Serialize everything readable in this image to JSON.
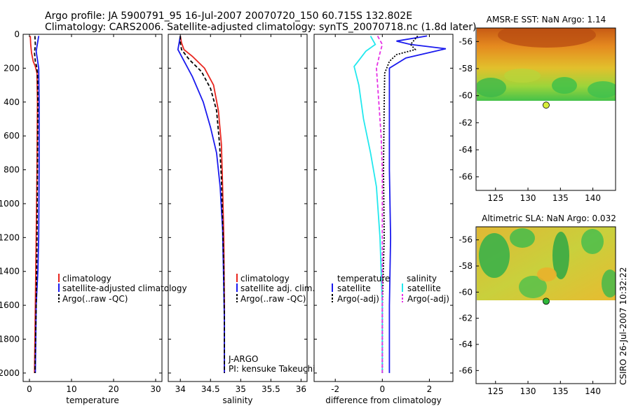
{
  "header": {
    "line1": "Argo profile: JA 5900791_95 16-Jul-2007 20070720_150 60.715S 132.802E",
    "line2": "Climatology: CARS2006. Satellite-adjusted climatology: synTS_20070718.nc (1.8d later)"
  },
  "side_stamp": "CSIRO 26-Jul-2007 10:32:22",
  "colors": {
    "climatology": "#e8251e",
    "satellite": "#1a1aee",
    "argo": "#000000",
    "temp_diff_sat": "#22e8ee",
    "sal_diff_sat": "#22e8ee",
    "argo_sal_adj": "#e632e6",
    "float_marker_sst": "#d8ee3a",
    "float_marker_sla": "#2fb83a"
  },
  "chart_data": [
    {
      "id": "temperature",
      "type": "line",
      "xlabel": "temperature",
      "ylabel": "",
      "xlim": [
        -1.5,
        31.5
      ],
      "ylim": [
        2050,
        0
      ],
      "xticks": [
        0,
        10,
        20,
        30
      ],
      "yticks": [
        0,
        200,
        400,
        600,
        800,
        1000,
        1200,
        1400,
        1600,
        1800,
        2000
      ],
      "legend_position": "lower-left",
      "legend": [
        "climatology",
        "satellite-adjusted climatology",
        "Argo(..raw -QC)"
      ],
      "series": [
        {
          "name": "climatology",
          "points": [
            [
              0.2,
              10
            ],
            [
              0.3,
              60
            ],
            [
              0.5,
              110
            ],
            [
              0.9,
              160
            ],
            [
              1.4,
              190
            ],
            [
              1.8,
              230
            ],
            [
              1.9,
              400
            ],
            [
              1.8,
              800
            ],
            [
              1.6,
              1200
            ],
            [
              1.4,
              1600
            ],
            [
              1.2,
              2000
            ]
          ]
        },
        {
          "name": "satellite-adjusted climatology",
          "points": [
            [
              2.2,
              10
            ],
            [
              2.0,
              40
            ],
            [
              1.8,
              70
            ],
            [
              1.6,
              100
            ],
            [
              1.9,
              150
            ],
            [
              2.2,
              200
            ],
            [
              2.3,
              400
            ],
            [
              2.3,
              800
            ],
            [
              2.2,
              1200
            ],
            [
              2.0,
              1400
            ],
            [
              1.6,
              1600
            ],
            [
              1.4,
              2000
            ]
          ]
        },
        {
          "name": "Argo(..raw -QC)",
          "points": [
            [
              1.3,
              10
            ],
            [
              1.4,
              60
            ],
            [
              1.2,
              110
            ],
            [
              1.4,
              160
            ],
            [
              1.7,
              190
            ],
            [
              1.9,
              230
            ],
            [
              2.0,
              400
            ],
            [
              1.9,
              800
            ],
            [
              1.8,
              1200
            ],
            [
              1.6,
              1600
            ],
            [
              1.3,
              2000
            ]
          ]
        }
      ]
    },
    {
      "id": "salinity",
      "type": "line",
      "xlabel": "salinity",
      "ylabel": "",
      "xlim": [
        33.8,
        36.1
      ],
      "ylim": [
        2050,
        0
      ],
      "xticks": [
        34,
        34.5,
        35,
        35.5,
        36
      ],
      "yticks": [
        0,
        200,
        400,
        600,
        800,
        1000,
        1200,
        1400,
        1600,
        1800,
        2000
      ],
      "legend_position": "lower-right",
      "legend": [
        "climatology",
        "satellite adj. clim.",
        "Argo(..raw -QC)"
      ],
      "annotations": [
        "J-ARGO",
        "PI: kensuke Takeuchi"
      ],
      "series": [
        {
          "name": "climatology",
          "points": [
            [
              34.0,
              10
            ],
            [
              34.02,
              50
            ],
            [
              34.06,
              90
            ],
            [
              34.2,
              130
            ],
            [
              34.4,
              200
            ],
            [
              34.55,
              300
            ],
            [
              34.63,
              450
            ],
            [
              34.68,
              650
            ],
            [
              34.7,
              900
            ],
            [
              34.72,
              1200
            ],
            [
              34.73,
              1600
            ],
            [
              34.73,
              2000
            ]
          ]
        },
        {
          "name": "satellite adj. clim.",
          "points": [
            [
              34.0,
              10
            ],
            [
              33.98,
              50
            ],
            [
              33.96,
              90
            ],
            [
              34.05,
              150
            ],
            [
              34.2,
              250
            ],
            [
              34.38,
              400
            ],
            [
              34.5,
              550
            ],
            [
              34.6,
              700
            ],
            [
              34.66,
              900
            ],
            [
              34.7,
              1150
            ],
            [
              34.72,
              1500
            ],
            [
              34.73,
              1700
            ],
            [
              34.73,
              2000
            ]
          ]
        },
        {
          "name": "Argo(..raw -QC)",
          "points": [
            [
              34.0,
              10
            ],
            [
              34.0,
              50
            ],
            [
              34.02,
              90
            ],
            [
              34.15,
              150
            ],
            [
              34.35,
              220
            ],
            [
              34.5,
              320
            ],
            [
              34.6,
              450
            ],
            [
              34.65,
              650
            ],
            [
              34.68,
              850
            ],
            [
              34.7,
              1100
            ],
            [
              34.72,
              1400
            ],
            [
              34.73,
              1700
            ],
            [
              34.73,
              2000
            ]
          ]
        }
      ]
    },
    {
      "id": "difference",
      "type": "line",
      "xlabel": "difference from climatology",
      "ylabel": "",
      "xlim": [
        -2.9,
        3.0
      ],
      "ylim": [
        2050,
        0
      ],
      "xticks": [
        -2,
        0,
        2
      ],
      "yticks": [
        0,
        200,
        400,
        600,
        800,
        1000,
        1200,
        1400,
        1600,
        1800,
        2000
      ],
      "legend_position": "lower-center",
      "legend_headers": [
        "temperature",
        "salinity"
      ],
      "legend": [
        "satellite",
        "Argo(-adj)",
        "satellite",
        "Argo(-adj)"
      ],
      "series": [
        {
          "name": "temperature satellite",
          "points": [
            [
              1.9,
              10
            ],
            [
              0.6,
              40
            ],
            [
              1.2,
              60
            ],
            [
              2.7,
              85
            ],
            [
              1.0,
              140
            ],
            [
              0.3,
              200
            ],
            [
              0.3,
              400
            ],
            [
              0.3,
              800
            ],
            [
              0.35,
              1200
            ],
            [
              0.3,
              1600
            ],
            [
              0.3,
              2000
            ]
          ]
        },
        {
          "name": "temperature Argo(-adj)",
          "points": [
            [
              1.5,
              10
            ],
            [
              1.2,
              60
            ],
            [
              1.4,
              90
            ],
            [
              0.6,
              120
            ],
            [
              0.3,
              160
            ],
            [
              0.1,
              230
            ],
            [
              0.08,
              400
            ],
            [
              0.05,
              800
            ],
            [
              0.08,
              1200
            ],
            [
              0.0,
              1600
            ],
            [
              0.0,
              2000
            ]
          ]
        },
        {
          "name": "salinity satellite",
          "points": [
            [
              -0.5,
              10
            ],
            [
              -0.3,
              60
            ],
            [
              -0.7,
              100
            ],
            [
              -1.2,
              190
            ],
            [
              -1.0,
              300
            ],
            [
              -0.8,
              500
            ],
            [
              -0.5,
              700
            ],
            [
              -0.25,
              900
            ],
            [
              -0.1,
              1200
            ],
            [
              0.0,
              1600
            ],
            [
              0.0,
              2000
            ]
          ]
        },
        {
          "name": "salinity Argo(-adj)",
          "points": [
            [
              -0.2,
              10
            ],
            [
              0.0,
              60
            ],
            [
              -0.1,
              110
            ],
            [
              -0.25,
              200
            ],
            [
              -0.15,
              400
            ],
            [
              -0.05,
              600
            ],
            [
              0.0,
              800
            ],
            [
              0.0,
              1200
            ],
            [
              0.0,
              1600
            ],
            [
              0.0,
              2000
            ]
          ]
        }
      ]
    },
    {
      "id": "sst_map",
      "type": "heatmap",
      "title": "AMSR-E SST: NaN Argo: 1.14",
      "xlim": [
        122,
        143.5
      ],
      "ylim": [
        -67,
        -55
      ],
      "xticks": [
        125,
        130,
        135,
        140
      ],
      "yticks": [
        -56,
        -58,
        -60,
        -62,
        -64,
        -66
      ],
      "float_position": [
        132.8,
        -60.7
      ]
    },
    {
      "id": "sla_map",
      "type": "heatmap",
      "title": "Altimetric SLA: NaN Argo: 0.032",
      "xlim": [
        122,
        143.5
      ],
      "ylim": [
        -67,
        -55
      ],
      "xticks": [
        125,
        130,
        135,
        140
      ],
      "yticks": [
        -56,
        -58,
        -60,
        -62,
        -64,
        -66
      ],
      "float_position": [
        132.8,
        -60.7
      ]
    }
  ]
}
